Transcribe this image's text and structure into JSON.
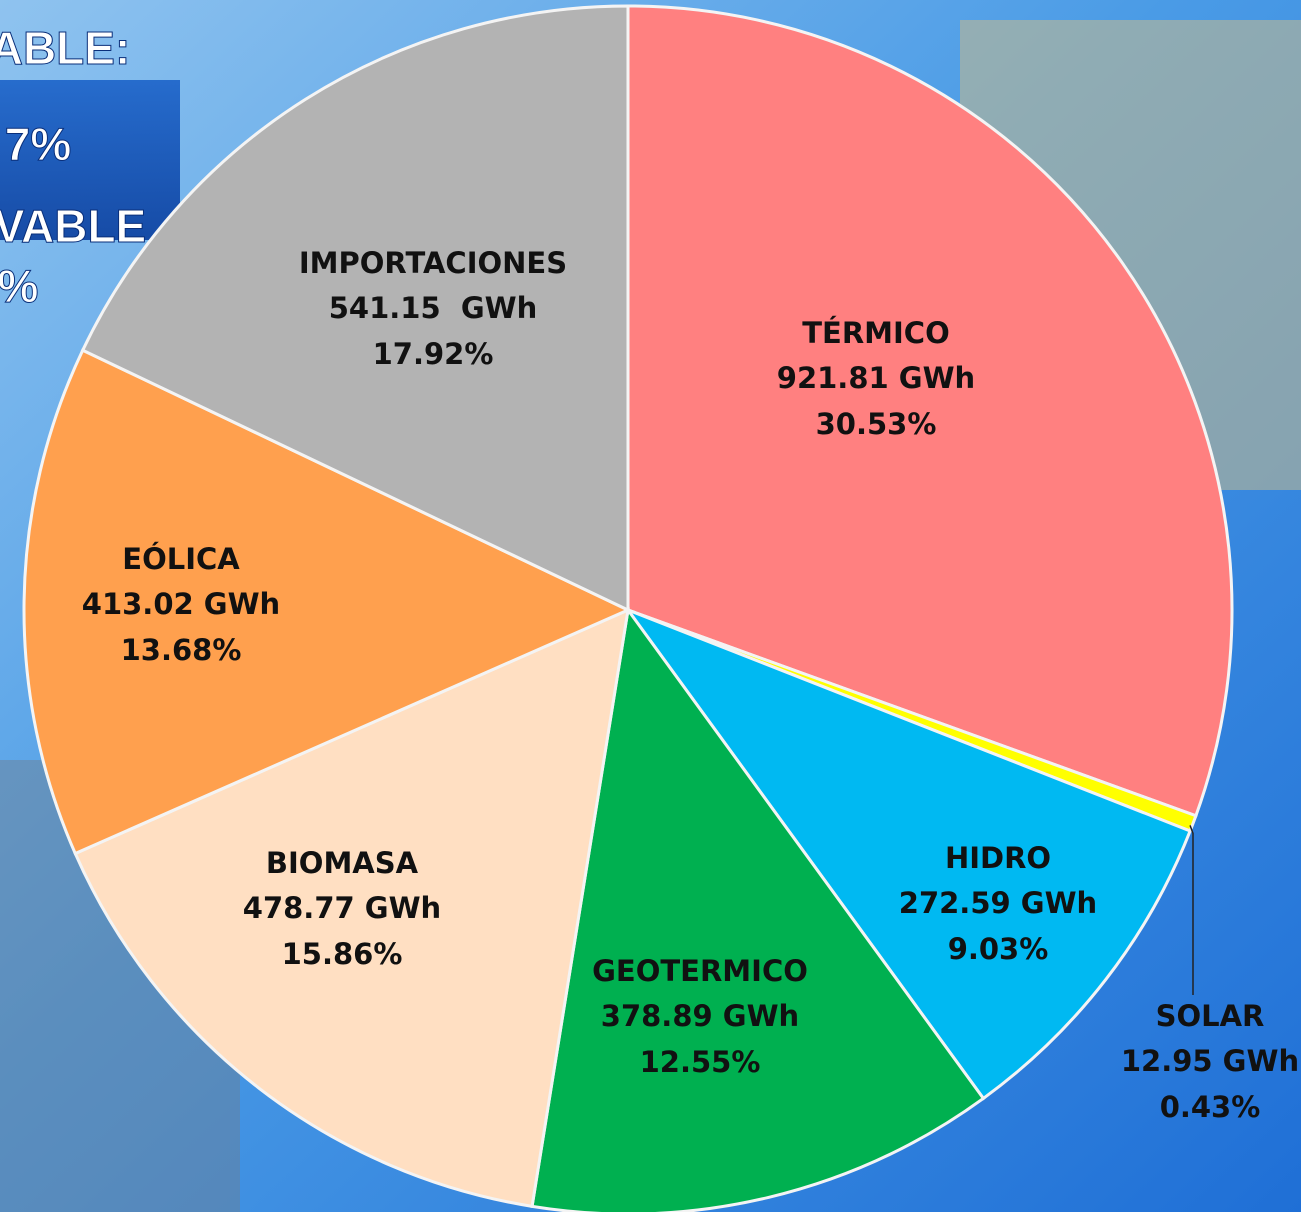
{
  "chart_data": {
    "type": "pie",
    "annotations": [
      "ABLE:",
      "7%",
      "VABLE",
      "%"
    ],
    "categories": [
      "TÉRMICO",
      "SOLAR",
      "HIDRO",
      "GEOTERMICO",
      "BIOMASA",
      "EÓLICA",
      "IMPORTACIONES"
    ],
    "values": [
      921.81,
      12.95,
      272.59,
      378.89,
      478.77,
      413.02,
      541.15
    ],
    "value_labels": [
      "921.81 GWh",
      "12.95 GWh",
      "272.59 GWh",
      "378.89 GWh",
      "478.77 GWh",
      "413.02 GWh",
      "541.15  GWh"
    ],
    "percents": [
      30.53,
      0.43,
      9.03,
      12.55,
      15.86,
      13.68,
      17.92
    ],
    "percent_labels": [
      "30.53%",
      "0.43%",
      "9.03%",
      "12.55%",
      "15.86%",
      "13.68%",
      "17.92%"
    ],
    "colors": [
      "#ff8080",
      "#ffff00",
      "#00b9f2",
      "#00b050",
      "#ffdfc2",
      "#ffa04e",
      "#b3b3b3"
    ]
  }
}
